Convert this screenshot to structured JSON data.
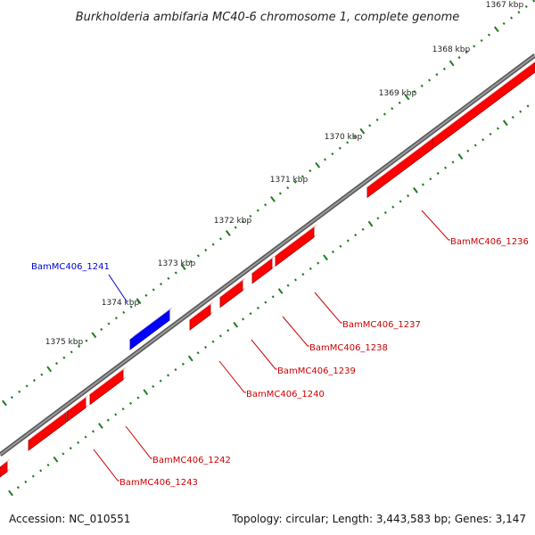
{
  "title": "Burkholderia ambifaria MC40-6 chromosome 1, complete genome",
  "footer": {
    "accession": "Accession: NC_010551",
    "summary": "Topology: circular; Length: 3,443,583 bp; Genes: 3,147"
  },
  "colors": {
    "forward_gene": "#ff0000",
    "reverse_gene": "#0000ff",
    "backbone": "#7f7f7f",
    "ticks": "#1e7a1e",
    "forward_label": "#cc0000",
    "reverse_label": "#0000cc"
  },
  "kbp_ticks": [
    "1367 kbp",
    "1368 kbp",
    "1369 kbp",
    "1370 kbp",
    "1371 kbp",
    "1372 kbp",
    "1373 kbp",
    "1374 kbp",
    "1375 kbp"
  ],
  "genes": [
    {
      "name": "BamMC406_1236",
      "strand": "forward"
    },
    {
      "name": "BamMC406_1237",
      "strand": "forward"
    },
    {
      "name": "BamMC406_1238",
      "strand": "forward"
    },
    {
      "name": "BamMC406_1239",
      "strand": "forward"
    },
    {
      "name": "BamMC406_1240",
      "strand": "forward"
    },
    {
      "name": "BamMC406_1241",
      "strand": "reverse"
    },
    {
      "name": "BamMC406_1242",
      "strand": "forward"
    },
    {
      "name": "BamMC406_1243",
      "strand": "forward"
    }
  ]
}
